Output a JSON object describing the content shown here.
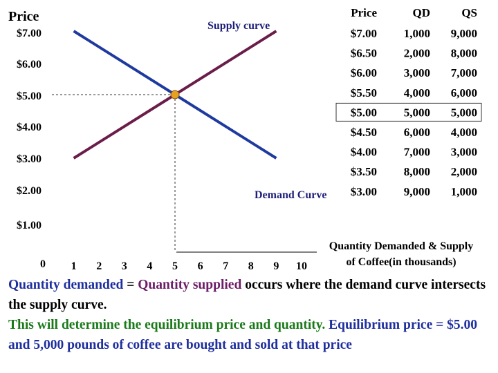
{
  "chart_data": {
    "type": "line",
    "ylabel": "Price",
    "xlabel_lines": [
      "Quantity Demanded & Supply",
      "of Coffee(in thousands)"
    ],
    "y_ticks": [
      "$7.00",
      "$6.00",
      "$5.00",
      "$4.00",
      "$3.00",
      "$2.00",
      "$1.00",
      "0"
    ],
    "x_ticks": [
      "1",
      "2",
      "3",
      "4",
      "5",
      "6",
      "7",
      "8",
      "9",
      "10"
    ],
    "series": [
      {
        "name": "Supply curve",
        "color": "#6b1d4a",
        "points": [
          [
            1,
            3.0
          ],
          [
            5,
            5.0
          ],
          [
            9,
            7.0
          ]
        ]
      },
      {
        "name": "Demand Curve",
        "color": "#1f3a9e",
        "points": [
          [
            1,
            7.0
          ],
          [
            5,
            5.0
          ],
          [
            9,
            3.0
          ]
        ]
      }
    ],
    "equilibrium": {
      "quantity": 5,
      "price": 5.0,
      "color": "#e8a020"
    },
    "table": {
      "headers": [
        "Price",
        "QD",
        "QS"
      ],
      "rows": [
        [
          "$7.00",
          "1,000",
          "9,000"
        ],
        [
          "$6.50",
          "2,000",
          "8,000"
        ],
        [
          "$6.00",
          "3,000",
          "7,000"
        ],
        [
          "$5.50",
          "4,000",
          "6,000"
        ],
        [
          "$5.00",
          "5,000",
          "5,000"
        ],
        [
          "$4.50",
          "6,000",
          "4,000"
        ],
        [
          "$4.00",
          "7,000",
          "3,000"
        ],
        [
          "$3.50",
          "8,000",
          "2,000"
        ],
        [
          "$3.00",
          "9,000",
          "1,000"
        ]
      ],
      "highlight_row": 4
    }
  },
  "caption": {
    "line1": [
      {
        "text": "Quantity demanded",
        "color": "#1f2f9e"
      },
      {
        "text": " = ",
        "color": "#000000"
      },
      {
        "text": "Quantity supplied",
        "color": "#6b1d66"
      },
      {
        "text": " occurs where the demand curve intersects the supply curve.",
        "color": "#000000"
      }
    ],
    "line2": [
      {
        "text": "This will determine the equilibrium price and quantity. ",
        "color": "#1a7a1a"
      },
      {
        "text": "Equilibrium price = $5.00 and 5,000 pounds of coffee are bought and sold at that price",
        "color": "#1f2f9e"
      }
    ]
  }
}
